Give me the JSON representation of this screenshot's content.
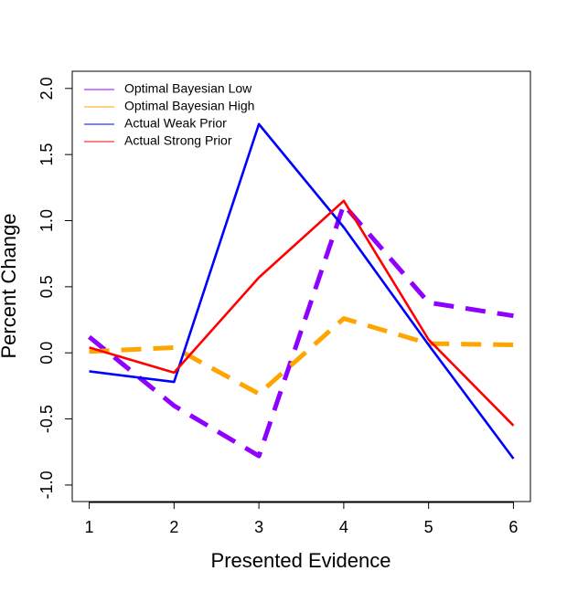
{
  "chart_data": {
    "type": "line",
    "x_label": "Presented Evidence",
    "y_label": "Percent Change",
    "x": [
      1,
      2,
      3,
      4,
      5,
      6
    ],
    "series": [
      {
        "name": "Optimal Bayesian Low",
        "color": "#8f00ff",
        "style": "dashed",
        "values": [
          0.12,
          -0.4,
          -0.78,
          1.12,
          0.38,
          0.28
        ]
      },
      {
        "name": "Optimal Bayesian High",
        "color": "#ffa500",
        "style": "dashed",
        "values": [
          0.01,
          0.04,
          -0.31,
          0.26,
          0.07,
          0.06
        ]
      },
      {
        "name": "Actual Weak Prior",
        "color": "#0000ff",
        "style": "solid",
        "values": [
          -0.14,
          -0.22,
          1.73,
          0.95,
          0.06,
          -0.8
        ]
      },
      {
        "name": "Actual Strong Prior",
        "color": "#ff0000",
        "style": "solid",
        "values": [
          0.04,
          -0.15,
          0.57,
          1.15,
          0.1,
          -0.55
        ]
      }
    ],
    "xlim": [
      0.8,
      6.2
    ],
    "xticks": [
      1,
      2,
      3,
      4,
      5,
      6
    ],
    "ylim": [
      -1.125,
      2.13
    ],
    "yticks": [
      {
        "value": -1,
        "label": "-1.0"
      },
      -0.5,
      {
        "value": 0,
        "label": "0.0"
      },
      0.5,
      {
        "value": 1,
        "label": "1.0"
      },
      1.5,
      {
        "value": 2,
        "label": "2.0"
      }
    ],
    "legend_position": "top-left",
    "grid": false
  }
}
